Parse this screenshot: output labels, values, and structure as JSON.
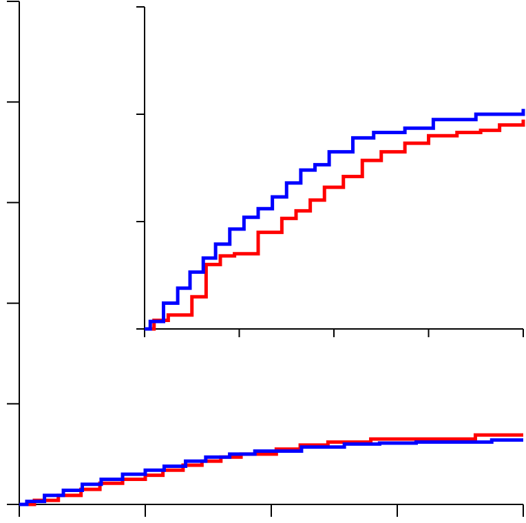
{
  "chart_data": [
    {
      "type": "line",
      "step": true,
      "title": "",
      "xlabel": "",
      "ylabel": "",
      "xlim": [
        0,
        4
      ],
      "ylim": [
        0,
        5
      ],
      "xticks": [
        0,
        1,
        2,
        3,
        4
      ],
      "yticks": [
        0,
        1,
        2,
        3,
        4,
        5
      ],
      "tick_labels_shown": false,
      "series": [
        {
          "color": "#ff0000",
          "x": [
            0,
            0.12,
            0.31,
            0.49,
            0.64,
            0.82,
            1.0,
            1.14,
            1.3,
            1.45,
            1.6,
            1.76,
            2.04,
            2.23,
            2.45,
            2.79,
            3.0,
            3.28,
            3.62,
            4.0
          ],
          "y": [
            0,
            0.04,
            0.09,
            0.15,
            0.21,
            0.25,
            0.29,
            0.34,
            0.39,
            0.43,
            0.47,
            0.5,
            0.55,
            0.59,
            0.62,
            0.65,
            0.65,
            0.65,
            0.69,
            0.69
          ]
        },
        {
          "color": "#0000ff",
          "x": [
            0,
            0.06,
            0.2,
            0.35,
            0.5,
            0.65,
            0.82,
            1.0,
            1.15,
            1.32,
            1.48,
            1.67,
            1.87,
            2.24,
            2.58,
            2.86,
            3.15,
            3.52,
            3.75,
            4.0
          ],
          "y": [
            0,
            0.03,
            0.09,
            0.14,
            0.2,
            0.25,
            0.3,
            0.34,
            0.38,
            0.43,
            0.47,
            0.5,
            0.53,
            0.57,
            0.6,
            0.61,
            0.62,
            0.62,
            0.64,
            0.64
          ]
        }
      ]
    },
    {
      "type": "line",
      "step": true,
      "title": "",
      "xlabel": "",
      "ylabel": "",
      "xlim": [
        0,
        4
      ],
      "ylim": [
        0,
        3
      ],
      "xticks": [
        0,
        1,
        2,
        3,
        4
      ],
      "yticks": [
        0,
        1,
        2,
        3
      ],
      "tick_labels_shown": false,
      "series": [
        {
          "color": "#ff0000",
          "x": [
            0,
            0.1,
            0.25,
            0.5,
            0.65,
            0.8,
            0.95,
            1.2,
            1.45,
            1.6,
            1.75,
            1.9,
            2.1,
            2.3,
            2.5,
            2.75,
            3.0,
            3.3,
            3.55,
            3.75,
            4.0
          ],
          "y": [
            0,
            0.08,
            0.13,
            0.3,
            0.6,
            0.68,
            0.7,
            0.9,
            1.03,
            1.1,
            1.2,
            1.32,
            1.42,
            1.57,
            1.65,
            1.73,
            1.8,
            1.83,
            1.85,
            1.9,
            1.95
          ]
        },
        {
          "color": "#0000ff",
          "x": [
            0,
            0.06,
            0.2,
            0.35,
            0.48,
            0.62,
            0.75,
            0.9,
            1.05,
            1.2,
            1.35,
            1.5,
            1.65,
            1.8,
            1.95,
            2.2,
            2.42,
            2.75,
            3.05,
            3.5,
            4.0
          ],
          "y": [
            0,
            0.07,
            0.24,
            0.38,
            0.53,
            0.66,
            0.79,
            0.93,
            1.04,
            1.12,
            1.23,
            1.36,
            1.48,
            1.53,
            1.65,
            1.78,
            1.83,
            1.87,
            1.95,
            2.0,
            2.05
          ]
        }
      ]
    }
  ]
}
